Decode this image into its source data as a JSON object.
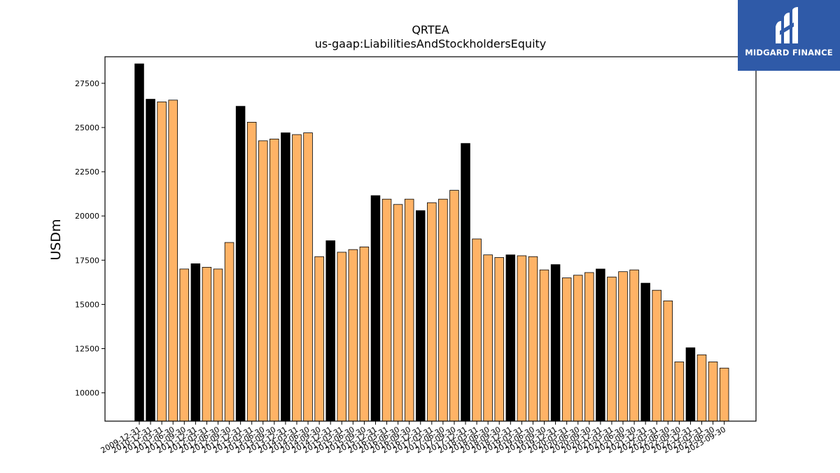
{
  "chart_data": {
    "type": "bar",
    "title": "QRTEA",
    "subtitle": "us-gaap:LiabilitiesAndStockholdersEquity",
    "xlabel": "",
    "ylabel": "USDm",
    "ylim": [
      8400,
      29000
    ],
    "yticks": [
      10000,
      12500,
      15000,
      17500,
      20000,
      22500,
      25000,
      27500
    ],
    "grid": false,
    "legend": "none",
    "colors": {
      "annual": "#000000",
      "quarterly": "#ffb366",
      "edge": "#000000"
    },
    "categories": [
      "2009-12-31",
      "2010-12-31",
      "2011-03-31",
      "2011-06-30",
      "2011-09-30",
      "2011-12-31",
      "2012-03-31",
      "2012-06-30",
      "2012-09-30",
      "2012-12-31",
      "2013-03-31",
      "2013-06-30",
      "2013-09-30",
      "2013-12-31",
      "2014-03-31",
      "2014-06-30",
      "2014-09-30",
      "2014-12-31",
      "2015-03-31",
      "2015-06-30",
      "2015-09-30",
      "2015-12-31",
      "2016-03-31",
      "2016-06-30",
      "2016-09-30",
      "2016-12-31",
      "2017-03-31",
      "2017-06-30",
      "2017-09-30",
      "2017-12-31",
      "2018-03-31",
      "2018-06-30",
      "2018-09-30",
      "2018-12-31",
      "2019-03-31",
      "2019-06-30",
      "2019-09-30",
      "2019-12-31",
      "2020-03-31",
      "2020-06-30",
      "2020-09-30",
      "2020-12-31",
      "2021-03-31",
      "2021-06-30",
      "2021-09-30",
      "2021-12-31",
      "2022-03-31",
      "2022-06-30",
      "2022-09-30",
      "2022-12-31",
      "2023-03-31",
      "2023-06-30",
      "2023-09-30"
    ],
    "values": [
      28600,
      26600,
      26450,
      26550,
      17000,
      17300,
      17100,
      17000,
      18500,
      26200,
      25300,
      24250,
      24350,
      24700,
      24600,
      24700,
      17700,
      18600,
      17950,
      18100,
      18250,
      21150,
      20950,
      20650,
      20950,
      20300,
      20750,
      20950,
      21450,
      24100,
      18700,
      17800,
      17650,
      17800,
      17750,
      17700,
      16950,
      17250,
      16500,
      16650,
      16800,
      17000,
      16550,
      16850,
      16950,
      16200,
      15800,
      15200,
      11750,
      12550,
      12150,
      11750,
      11400
    ],
    "annual": [
      true,
      true,
      false,
      false,
      false,
      true,
      false,
      false,
      false,
      true,
      false,
      false,
      false,
      true,
      false,
      false,
      false,
      true,
      false,
      false,
      false,
      true,
      false,
      false,
      false,
      true,
      false,
      false,
      false,
      true,
      false,
      false,
      false,
      true,
      false,
      false,
      false,
      true,
      false,
      false,
      false,
      true,
      false,
      false,
      false,
      true,
      false,
      false,
      false,
      true,
      false,
      false,
      false
    ]
  },
  "logo": {
    "text": "MIDGARD FINANCE"
  }
}
